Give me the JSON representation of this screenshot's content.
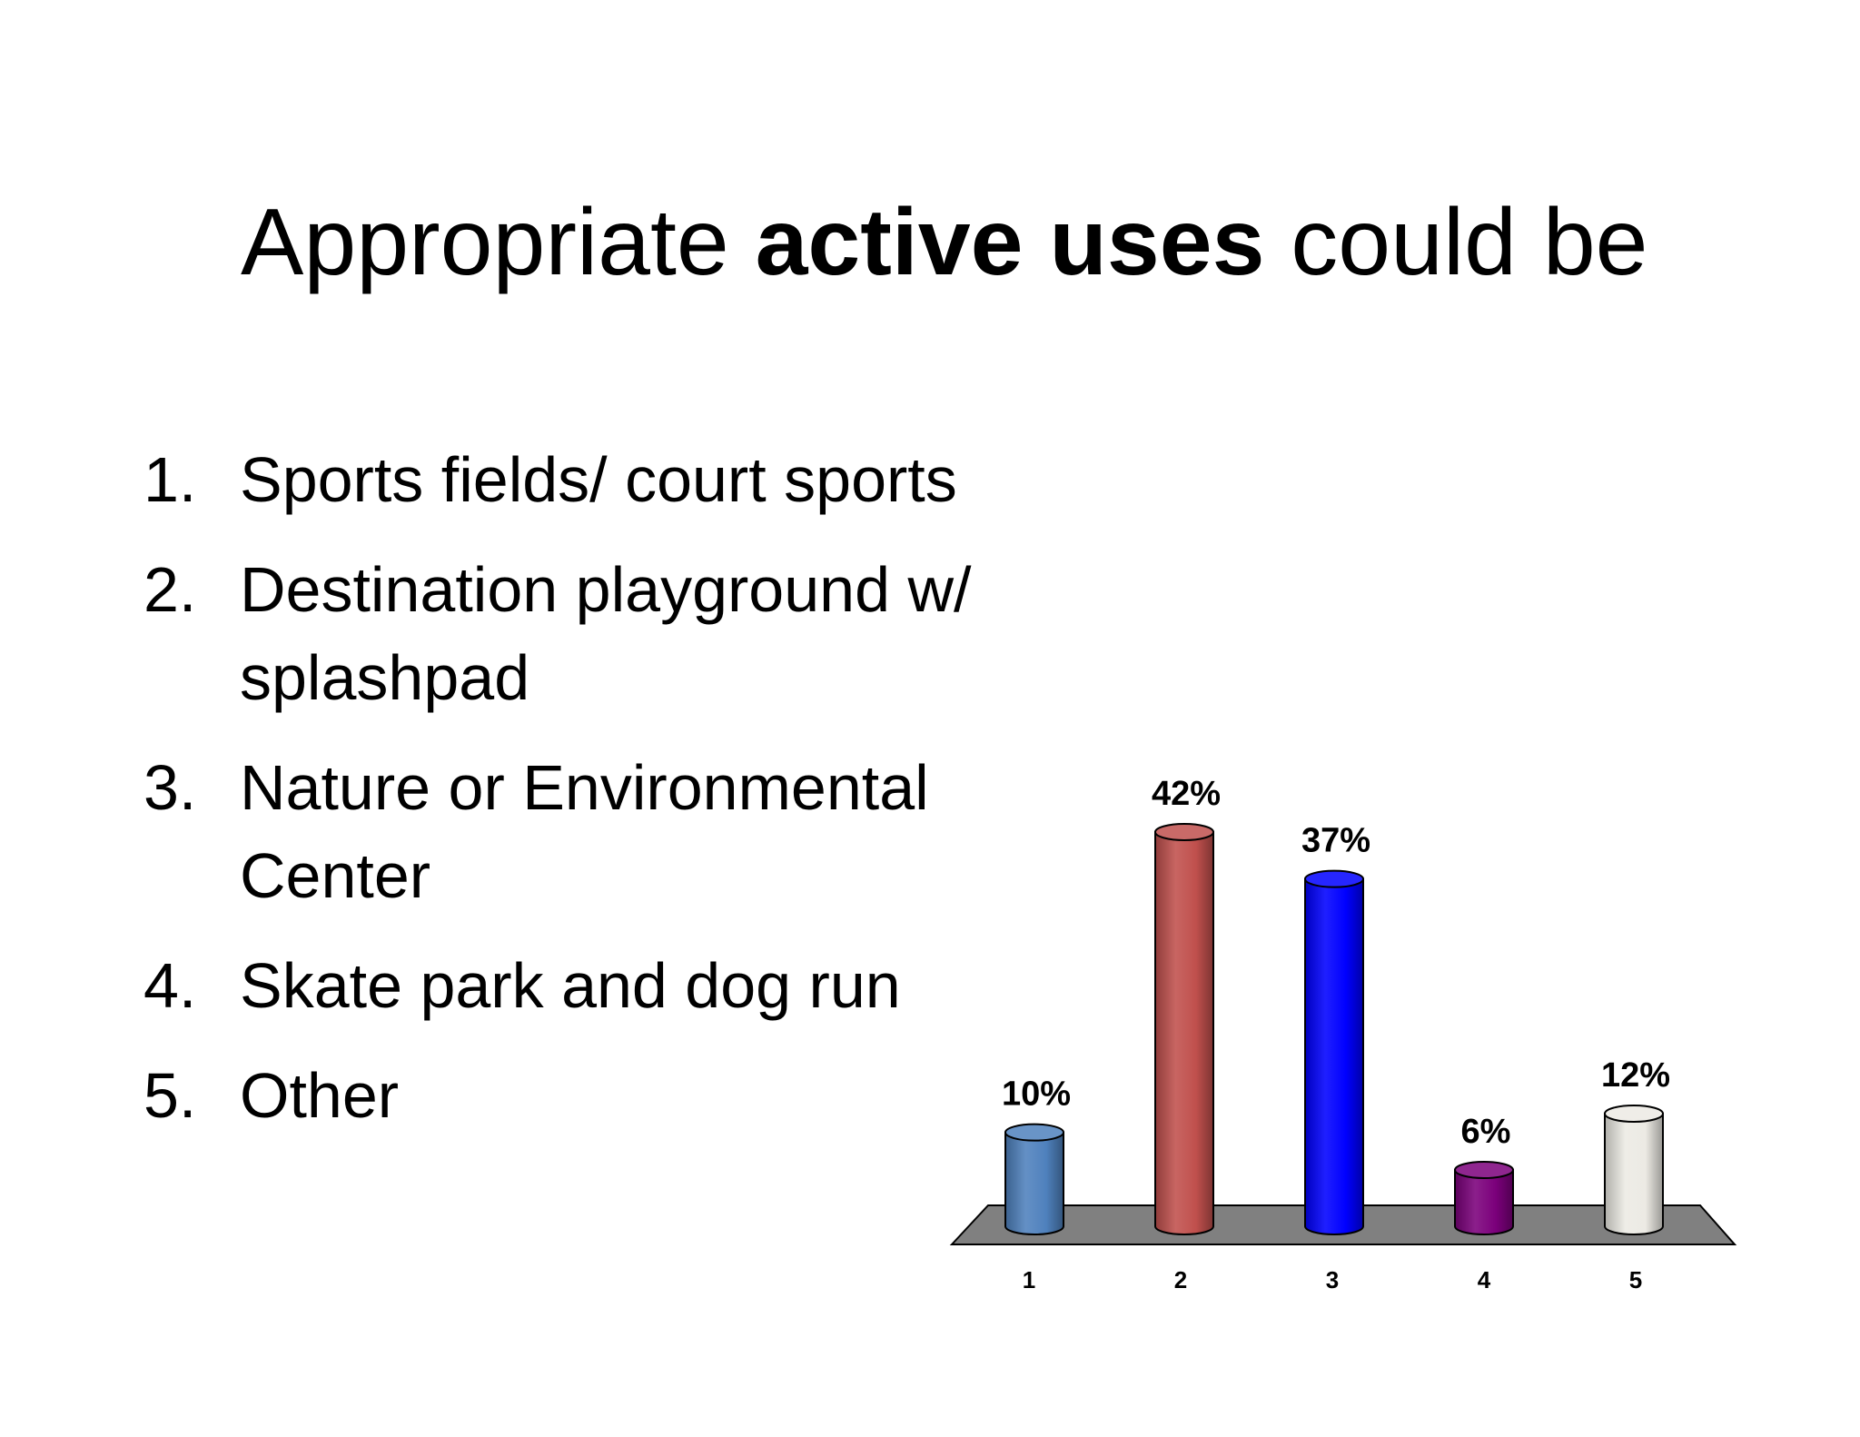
{
  "slide": {
    "title_part1": "Appropriate ",
    "title_bold": "active uses",
    "title_part2": " could be"
  },
  "options": [
    {
      "num": "1.",
      "text": "Sports fields/ court sports"
    },
    {
      "num": "2.",
      "text": "Destination playground w/ splashpad"
    },
    {
      "num": "3.",
      "text": "Nature or Environmental Center"
    },
    {
      "num": "4.",
      "text": "Skate park and dog run"
    },
    {
      "num": "5.",
      "text": "Other"
    }
  ],
  "chart_data": {
    "type": "bar",
    "categories": [
      "1",
      "2",
      "3",
      "4",
      "5"
    ],
    "values": [
      10,
      42,
      37,
      6,
      12
    ],
    "labels": [
      "10%",
      "42%",
      "37%",
      "6%",
      "12%"
    ],
    "colors": [
      "#4f81bd",
      "#c0504d",
      "#0000ff",
      "#7b007b",
      "#eceae4"
    ],
    "floor_color": "#808080",
    "title": "",
    "xlabel": "",
    "ylabel": "",
    "ylim": [
      0,
      42
    ],
    "grid": false,
    "legend": "none"
  }
}
